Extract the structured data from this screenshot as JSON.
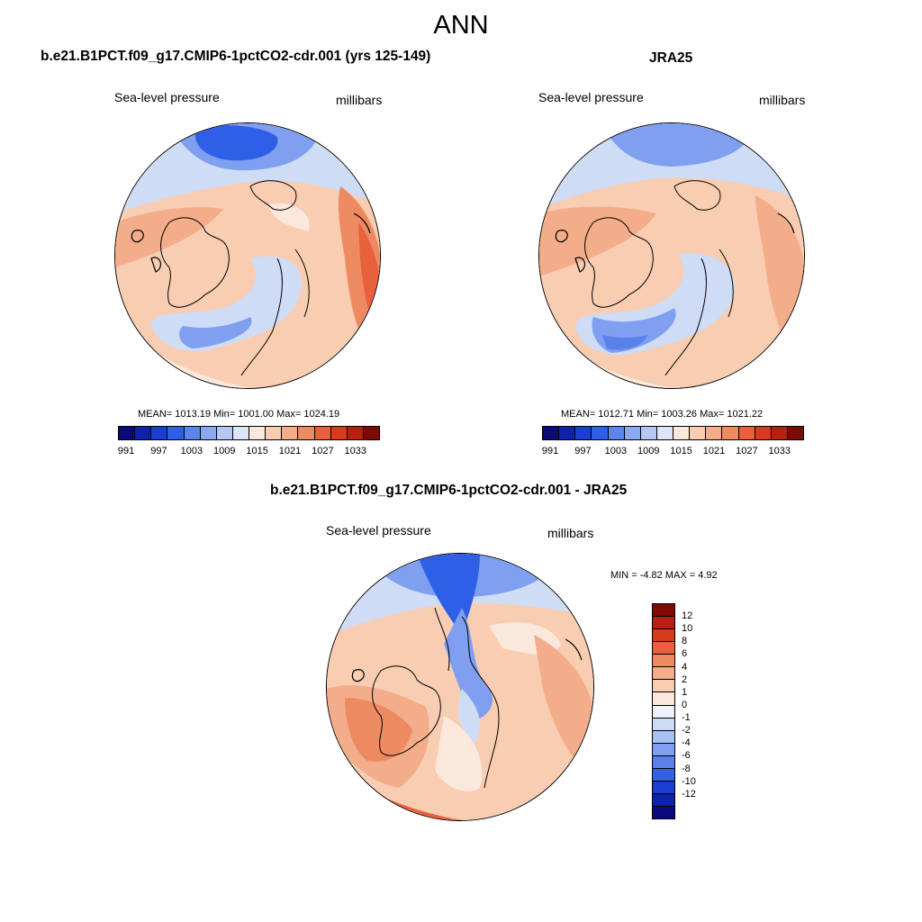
{
  "figure": {
    "title": "ANN"
  },
  "panels": [
    {
      "title": "b.e21.B1PCT.f09_g17.CMIP6-1pctCO2-cdr.001 (yrs 125-149)",
      "variable": "Sea-level pressure",
      "units": "millibars",
      "stats": "MEAN= 1013.19  Min= 1001.00  Max= 1024.19"
    },
    {
      "title": "JRA25",
      "variable": "Sea-level pressure",
      "units": "millibars",
      "stats": "MEAN= 1012.71  Min= 1003.26  Max= 1021.22"
    },
    {
      "title": "b.e21.B1PCT.f09_g17.CMIP6-1pctCO2-cdr.001 - JRA25",
      "variable": "Sea-level pressure",
      "units": "millibars",
      "stats": "MIN =  -4.82 MAX =   4.92"
    }
  ],
  "colorbars": {
    "absolute": {
      "colors": [
        "#0a0a7a",
        "#0c22a8",
        "#1a3fd0",
        "#2f5fe6",
        "#5a85ee",
        "#8aa9f2",
        "#b4c8f4",
        "#dce6f8",
        "#fbe8dc",
        "#f8cdb2",
        "#f3ad8a",
        "#ee8a62",
        "#e8603c",
        "#d83a1e",
        "#b81f0e",
        "#7d0a05"
      ],
      "labels": [
        "991",
        "997",
        "1003",
        "1009",
        "1015",
        "1021",
        "1027",
        "1033"
      ]
    },
    "difference": {
      "colors": [
        "#7d0a05",
        "#b81f0e",
        "#d83a1e",
        "#e8603c",
        "#ee8a62",
        "#f3ad8a",
        "#f8cdb2",
        "#fbe8dc",
        "#eef2fb",
        "#cfdcf6",
        "#a9c1f3",
        "#7f9ff0",
        "#5a80ea",
        "#3361e4",
        "#1a3fd0",
        "#0c22a8",
        "#0a0a7a"
      ],
      "labels": [
        "12",
        "10",
        "8",
        "6",
        "4",
        "2",
        "1",
        "0",
        "-1",
        "-2",
        "-4",
        "-6",
        "-8",
        "-10",
        "-12"
      ]
    }
  },
  "map_colors": {
    "deep_blue": "#2f5fe6",
    "mid_blue": "#7f9ff0",
    "light_blue": "#cfdcf6",
    "pale_peach": "#fbe8dc",
    "light_peach": "#f8cdb2",
    "salmon": "#f3ad8a",
    "orange": "#ee8a62",
    "red_orange": "#e8603c",
    "coastline": "#000000"
  }
}
